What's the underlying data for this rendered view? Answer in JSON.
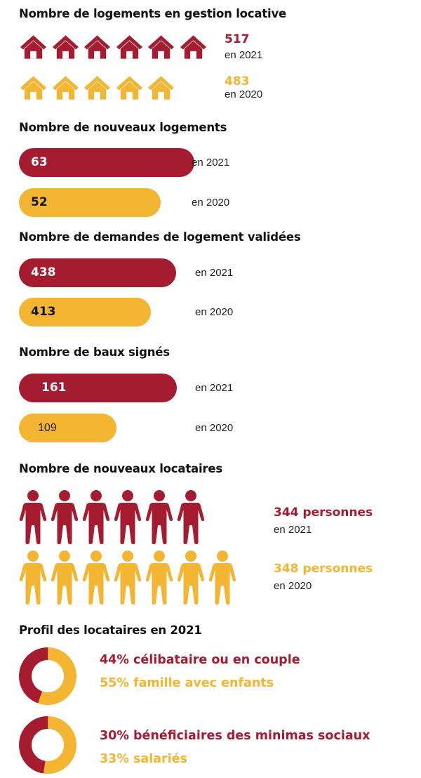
{
  "colors": {
    "primary": "#a51c30",
    "secondary": "#f4b532"
  },
  "sections": {
    "logements": {
      "title": "Nombre de logements en gestion locative"
    },
    "nouveaux": {
      "title": "Nombre de nouveaux logements"
    },
    "demandes": {
      "title": "Nombre de demandes de logement validées"
    },
    "baux": {
      "title": "Nombre de baux signés"
    },
    "locataires": {
      "title": "Nombre de nouveaux locataires"
    },
    "profil": {
      "title": "Profil des locataires en 2021"
    }
  },
  "chart_data": [
    {
      "type": "bar",
      "title": "Nombre de logements en gestion locative",
      "categories": [
        "en 2021",
        "en 2020"
      ],
      "values": [
        517,
        483
      ],
      "value_labels": [
        "517",
        "483"
      ],
      "icon": "house-icon",
      "icon_counts": [
        6,
        5
      ]
    },
    {
      "type": "bar",
      "title": "Nombre de nouveaux logements",
      "categories": [
        "en 2021",
        "en 2020"
      ],
      "values": [
        63,
        52
      ],
      "value_labels": [
        "63",
        "52"
      ]
    },
    {
      "type": "bar",
      "title": "Nombre de demandes de logement validées",
      "categories": [
        "en 2021",
        "en 2020"
      ],
      "values": [
        438,
        413
      ],
      "value_labels": [
        "438",
        "413"
      ]
    },
    {
      "type": "bar",
      "title": "Nombre de baux signés",
      "categories": [
        "en 2021",
        "en 2020"
      ],
      "values": [
        161,
        109
      ],
      "value_labels": [
        "161",
        "109"
      ]
    },
    {
      "type": "bar",
      "title": "Nombre de nouveaux locataires",
      "categories": [
        "en 2021",
        "en 2020"
      ],
      "values": [
        344,
        348
      ],
      "value_labels": [
        "344 personnes",
        "348 personnes"
      ],
      "icon": "person-icon",
      "icon_counts": [
        6,
        7
      ]
    },
    {
      "type": "pie",
      "title": "Profil des locataires en 2021",
      "labels": [
        "célibataire ou en couple",
        "famille avec enfants"
      ],
      "values": [
        44,
        55
      ],
      "value_labels": [
        "44% célibataire ou en couple",
        "55% famille avec enfants"
      ]
    },
    {
      "type": "pie",
      "labels": [
        "bénéficiaires des minimas sociaux",
        "salariés"
      ],
      "values": [
        30,
        33
      ],
      "value_labels": [
        "30% bénéficiaires des minimas sociaux",
        "33% salariés"
      ]
    }
  ]
}
